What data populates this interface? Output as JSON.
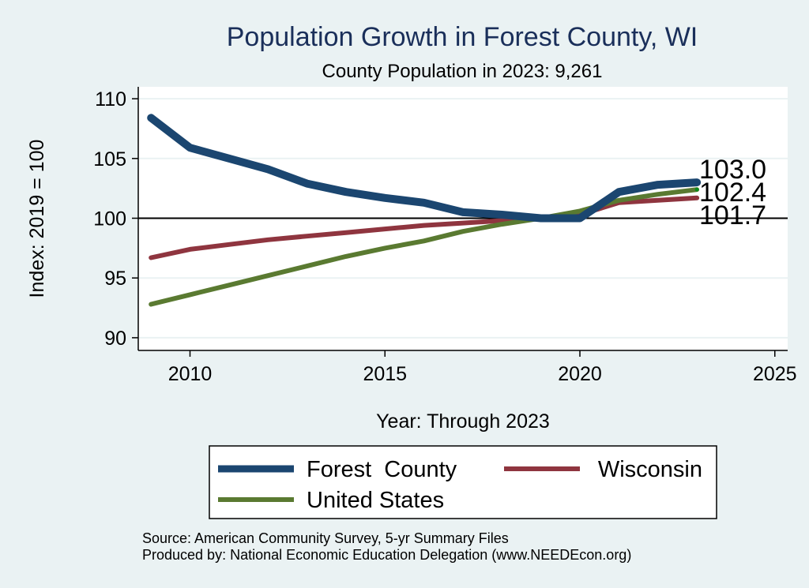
{
  "chart_data": {
    "type": "line",
    "title": "Population Growth in Forest County, WI",
    "subtitle": "County Population in 2023: 9,261",
    "xlabel": "Year: Through 2023",
    "ylabel": "Index: 2019 = 100",
    "xlim": [
      2008.7,
      2025.4
    ],
    "ylim": [
      89,
      111
    ],
    "xticks": [
      2010,
      2015,
      2020,
      2025
    ],
    "yticks": [
      90,
      95,
      100,
      105,
      110
    ],
    "xtick_labels": [
      "2010",
      "2015",
      "2020",
      "2025"
    ],
    "ytick_labels": [
      "90",
      "95",
      "100",
      "105",
      "110"
    ],
    "reference_line": 100,
    "grid": true,
    "x": [
      2009,
      2010,
      2011,
      2012,
      2013,
      2014,
      2015,
      2016,
      2017,
      2018,
      2019,
      2020,
      2021,
      2022,
      2023
    ],
    "series": [
      {
        "name": "Forest  County",
        "color": "#1b4670",
        "values": [
          108.4,
          105.9,
          105.0,
          104.1,
          102.9,
          102.2,
          101.7,
          101.3,
          100.5,
          100.3,
          100.0,
          100.0,
          102.2,
          102.8,
          103.0
        ]
      },
      {
        "name": "Wisconsin",
        "color": "#8f353f",
        "values": [
          96.7,
          97.4,
          97.8,
          98.2,
          98.5,
          98.8,
          99.1,
          99.4,
          99.6,
          99.8,
          100.0,
          100.3,
          101.3,
          101.5,
          101.7
        ]
      },
      {
        "name": "United States",
        "color": "#5a7a31",
        "values": [
          92.8,
          93.6,
          94.4,
          95.2,
          96.0,
          96.8,
          97.5,
          98.1,
          98.9,
          99.5,
          100.0,
          100.6,
          101.5,
          102.0,
          102.4
        ]
      }
    ],
    "end_labels": [
      "103.0",
      "102.4",
      "101.7"
    ],
    "legend_position": "bottom"
  },
  "legend": {
    "items": [
      "Forest  County",
      "Wisconsin",
      "United States"
    ]
  },
  "notes": {
    "source": "Source: American Community Survey, 5-yr Summary Files",
    "produced": "Produced by: National Economic Education Delegation (www.NEEDEcon.org)"
  }
}
